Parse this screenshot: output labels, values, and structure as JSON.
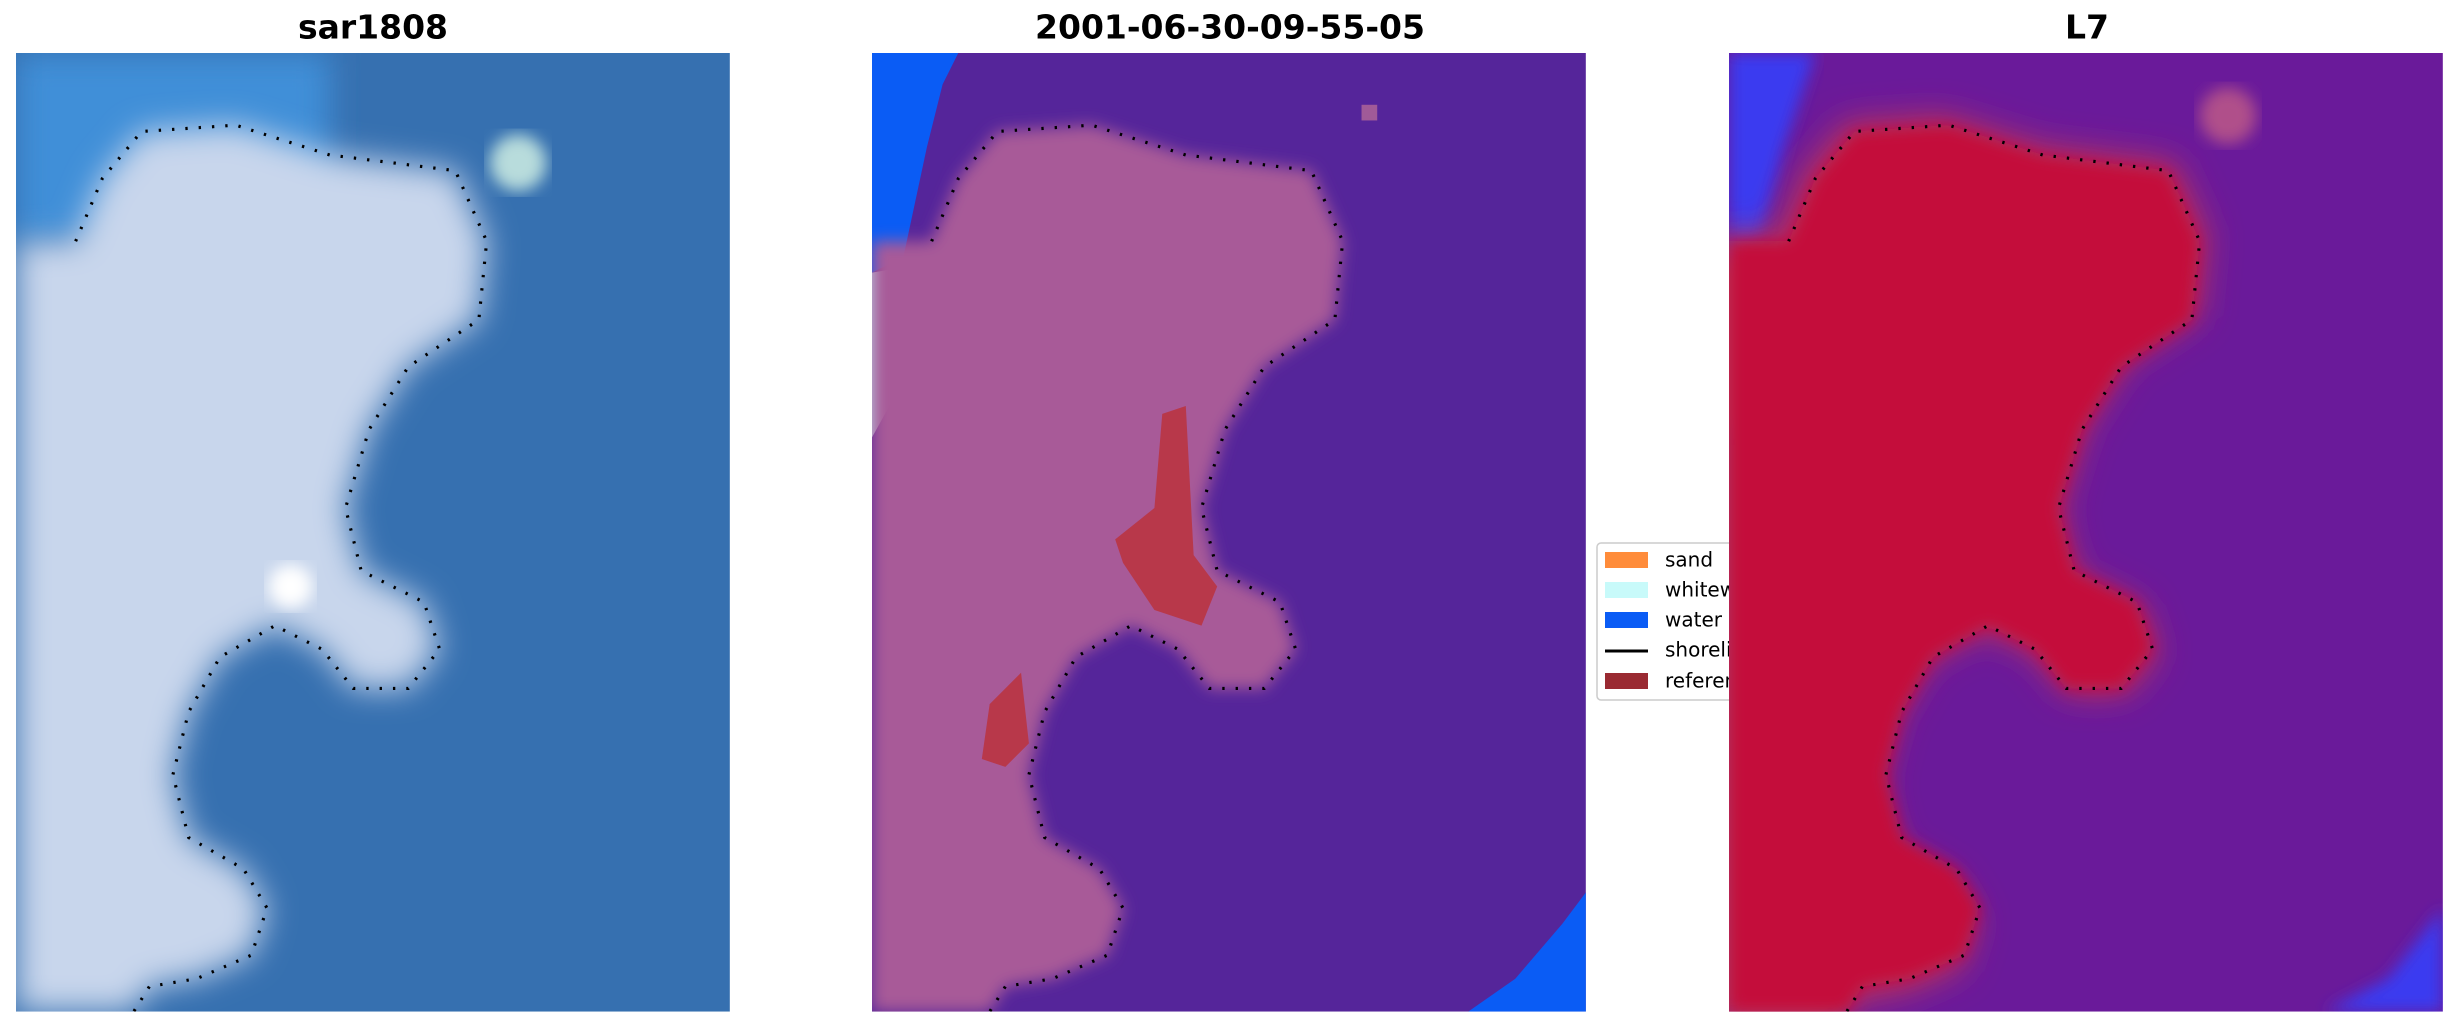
{
  "panels": [
    {
      "title": "sar1808"
    },
    {
      "title": "2001-06-30-09-55-05"
    },
    {
      "title": "L7"
    }
  ],
  "legend": {
    "items": [
      "sand",
      "whitewater",
      "water",
      "shoreline",
      "reference"
    ]
  }
}
